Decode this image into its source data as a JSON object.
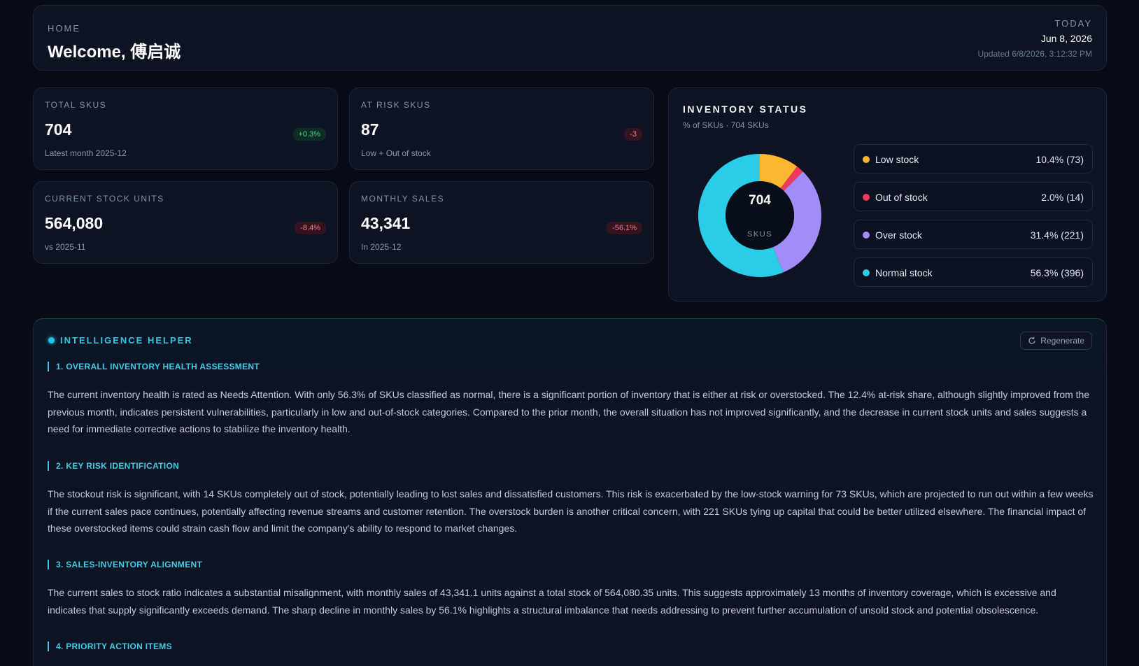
{
  "header": {
    "eyebrow": "HOME",
    "welcome": "Welcome, 傅启诚",
    "today_label": "TODAY",
    "date": "Jun 8, 2026",
    "updated": "Updated 6/8/2026, 3:12:32 PM"
  },
  "kpis": [
    {
      "label": "TOTAL SKUS",
      "value": "704",
      "badge": "+0.3%",
      "badge_trend": "up",
      "sub": "Latest month 2025-12"
    },
    {
      "label": "AT RISK SKUS",
      "value": "87",
      "badge": "-3",
      "badge_trend": "down",
      "sub": "Low + Out of stock"
    },
    {
      "label": "CURRENT STOCK UNITS",
      "value": "564,080",
      "badge": "-8.4%",
      "badge_trend": "down",
      "sub": "vs 2025-11"
    },
    {
      "label": "MONTHLY SALES",
      "value": "43,341",
      "badge": "-56.1%",
      "badge_trend": "down",
      "sub": "In 2025-12"
    }
  ],
  "inventory_status": {
    "title": "INVENTORY STATUS",
    "subtitle": "% of SKUs · 704 SKUs",
    "center_value": "704",
    "center_label": "SKUS",
    "legend": [
      {
        "name": "Low stock",
        "value_text": "10.4% (73)",
        "color": "#fbb62f"
      },
      {
        "name": "Out of stock",
        "value_text": "2.0% (14)",
        "color": "#f0395a"
      },
      {
        "name": "Over stock",
        "value_text": "31.4% (221)",
        "color": "#a38bf8"
      },
      {
        "name": "Normal stock",
        "value_text": "56.3% (396)",
        "color": "#29cde8"
      }
    ]
  },
  "chart_data": {
    "type": "pie",
    "categories": [
      "Low stock",
      "Out of stock",
      "Over stock",
      "Normal stock"
    ],
    "values": [
      73,
      14,
      221,
      396
    ],
    "colors": [
      "#fbb62f",
      "#f0395a",
      "#a38bf8",
      "#29cde8"
    ]
  },
  "helper": {
    "title": "INTELLIGENCE HELPER",
    "regenerate_label": "Regenerate",
    "sections": [
      {
        "heading": "1. OVERALL INVENTORY HEALTH ASSESSMENT",
        "body": "The current inventory health is rated as Needs Attention. With only 56.3% of SKUs classified as normal, there is a significant portion of inventory that is either at risk or overstocked. The 12.4% at-risk share, although slightly improved from the previous month, indicates persistent vulnerabilities, particularly in low and out-of-stock categories. Compared to the prior month, the overall situation has not improved significantly, and the decrease in current stock units and sales suggests a need for immediate corrective actions to stabilize the inventory health."
      },
      {
        "heading": "2. KEY RISK IDENTIFICATION",
        "body": "The stockout risk is significant, with 14 SKUs completely out of stock, potentially leading to lost sales and dissatisfied customers. This risk is exacerbated by the low-stock warning for 73 SKUs, which are projected to run out within a few weeks if the current sales pace continues, potentially affecting revenue streams and customer retention. The overstock burden is another critical concern, with 221 SKUs tying up capital that could be better utilized elsewhere. The financial impact of these overstocked items could strain cash flow and limit the company's ability to respond to market changes."
      },
      {
        "heading": "3. SALES-INVENTORY ALIGNMENT",
        "body": "The current sales to stock ratio indicates a substantial misalignment, with monthly sales of 43,341.1 units against a total stock of 564,080.35 units. This suggests approximately 13 months of inventory coverage, which is excessive and indicates that supply significantly exceeds demand. The sharp decline in monthly sales by 56.1% highlights a structural imbalance that needs addressing to prevent further accumulation of unsold stock and potential obsolescence."
      },
      {
        "heading": "4. PRIORITY ACTION ITEMS"
      }
    ]
  }
}
